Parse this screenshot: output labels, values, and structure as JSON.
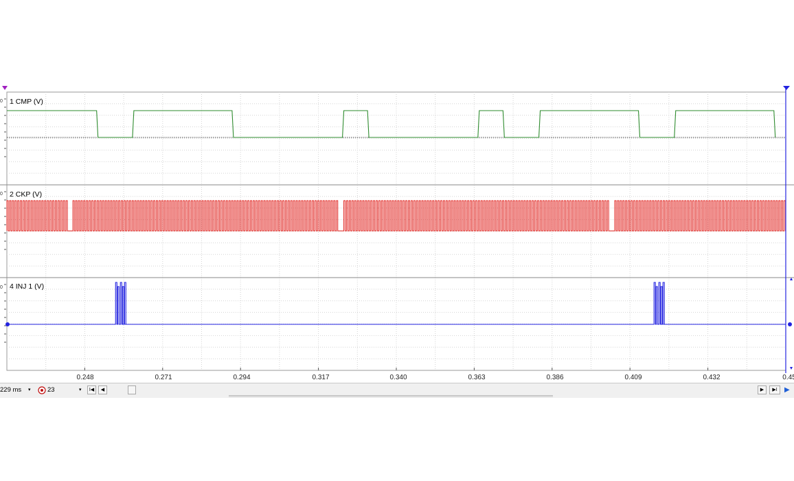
{
  "channels": [
    {
      "id": "cmp",
      "label": "1 CMP (V)",
      "color": "#2e8b2e"
    },
    {
      "id": "ckp",
      "label": "2 CKP (V)",
      "color": "#e0201c"
    },
    {
      "id": "inj",
      "label": "4 INJ 1 (V)",
      "color": "#2323e0"
    }
  ],
  "x_axis": {
    "ticks": [
      "0.248",
      "0.271",
      "0.294",
      "0.317",
      "0.340",
      "0.363",
      "0.386",
      "0.409",
      "0.432",
      "0.45"
    ]
  },
  "y_tick_stub": "0",
  "toolbar": {
    "timebase": "229 ms",
    "trigger_count": "23",
    "dropdown_arrow": "▾",
    "btn_first": "I◀",
    "btn_prev": "◀",
    "btn_next": "▶",
    "btn_last": "▶I",
    "btn_play": "▶"
  },
  "chart_data": {
    "type": "line",
    "xlabel": "",
    "ylabel": "",
    "xlim": [
      0.225,
      0.455
    ],
    "series": [
      {
        "name": "1 CMP (V)",
        "kind": "cmp",
        "high_intervals": [
          [
            0.225,
            0.2515
          ],
          [
            0.2625,
            0.2915
          ],
          [
            0.3245,
            0.3315
          ],
          [
            0.3645,
            0.3715
          ],
          [
            0.3825,
            0.4115
          ],
          [
            0.4225,
            0.4515
          ]
        ]
      },
      {
        "name": "2 CKP (V)",
        "kind": "ckp",
        "period": 0.000794,
        "gaps": [
          [
            0.2425,
            0.2445
          ],
          [
            0.3225,
            0.3245
          ],
          [
            0.4025,
            0.4045
          ]
        ]
      },
      {
        "name": "4 INJ 1 (V)",
        "kind": "inj",
        "bursts": [
          0.2571,
          0.4161
        ]
      }
    ]
  }
}
